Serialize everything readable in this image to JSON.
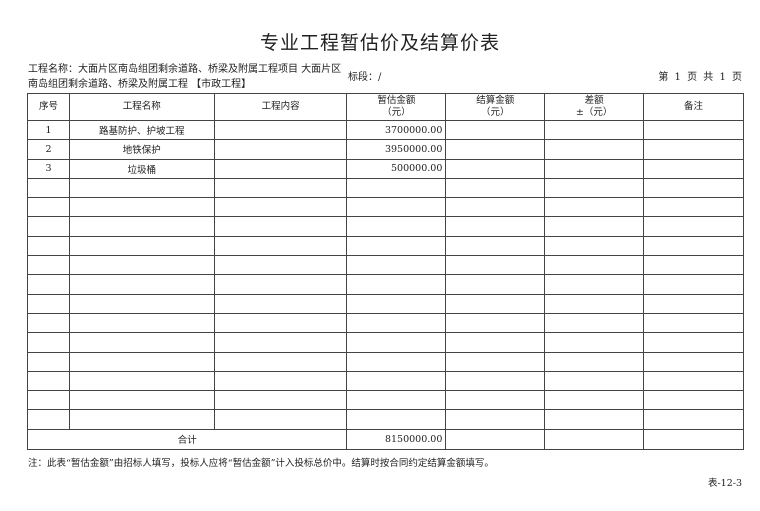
{
  "title": "专业工程暂估价及结算价表",
  "project_name": "工程名称：大面片区南岛组团剩余道路、桥梁及附属工程项目 大面片区南岛组团剩余道路、桥梁及附属工程 【市政工程】",
  "section": "标段：/",
  "page_info": "第 1 页 共 1 页",
  "table": {
    "headers": [
      {
        "l1": "序号",
        "l2": ""
      },
      {
        "l1": "工程名称",
        "l2": ""
      },
      {
        "l1": "工程内容",
        "l2": ""
      },
      {
        "l1": "暂估金额",
        "l2": "（元）"
      },
      {
        "l1": "结算金额",
        "l2": "（元）"
      },
      {
        "l1": "差额",
        "l2": "±（元）"
      },
      {
        "l1": "备注",
        "l2": ""
      }
    ],
    "rows": [
      {
        "no": "1",
        "name": "路基防护、护坡工程",
        "content": "",
        "estimate": "3700000.00",
        "settle": "",
        "diff": "",
        "remark": ""
      },
      {
        "no": "2",
        "name": "地铁保护",
        "content": "",
        "estimate": "3950000.00",
        "settle": "",
        "diff": "",
        "remark": ""
      },
      {
        "no": "3",
        "name": "垃圾桶",
        "content": "",
        "estimate": "500000.00",
        "settle": "",
        "diff": "",
        "remark": ""
      }
    ],
    "total_label": "合计",
    "total_estimate": "8150000.00"
  },
  "note": "注：此表“暂估金额”由招标人填写，投标人应将“暂估金额”计入投标总价中。结算时按合同约定结算金额填写。",
  "form_code": "表-12-3"
}
